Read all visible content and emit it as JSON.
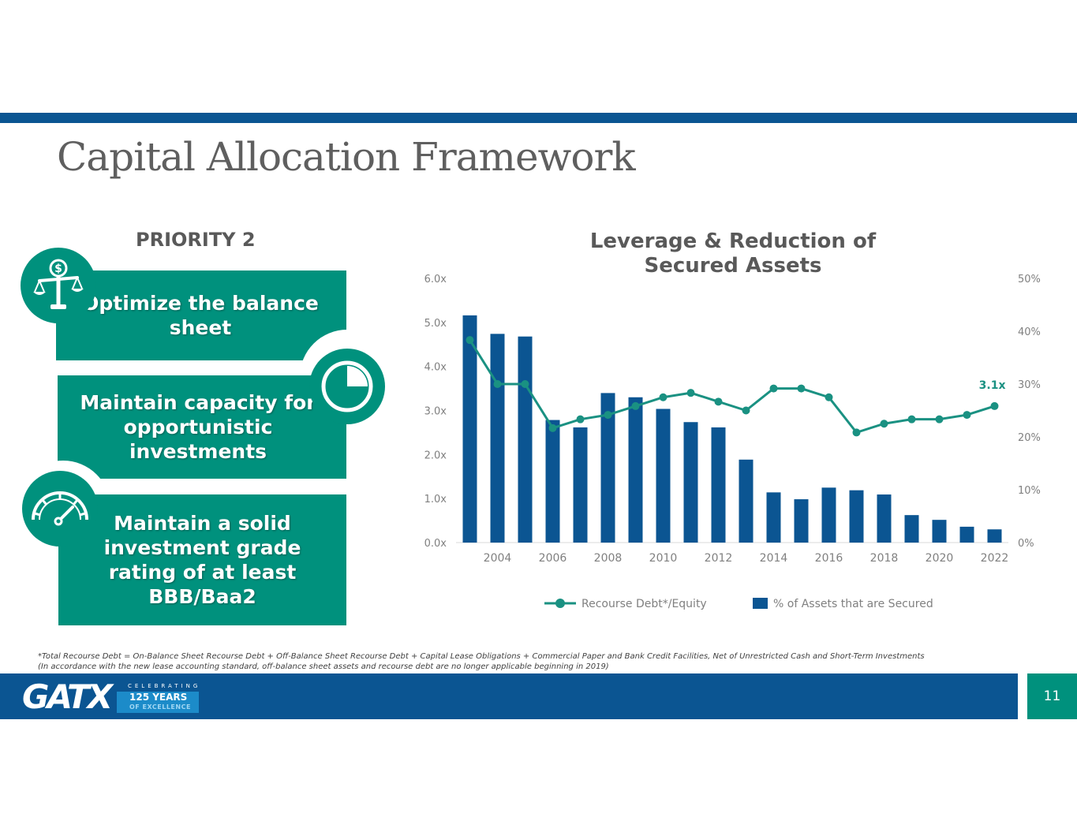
{
  "slide": {
    "title": "Capital Allocation Framework",
    "priority": "PRIORITY 2",
    "page_number": "11"
  },
  "panels": [
    {
      "text": "Optimize the balance sheet",
      "icon": "scale-dollar-icon"
    },
    {
      "text": "Maintain capacity for opportunistic investments",
      "icon": "clock-icon"
    },
    {
      "text": "Maintain a solid investment grade rating of at least BBB/Baa2",
      "icon": "speedometer-icon"
    }
  ],
  "footnotes": {
    "line1": "*Total Recourse Debt = On-Balance Sheet Recourse Debt + Off-Balance Sheet Recourse Debt + Capital Lease Obligations + Commercial Paper and Bank Credit Facilities, Net of Unrestricted Cash and Short-Term Investments",
    "line2": "(In accordance with the new lease accounting standard, off-balance sheet assets and recourse debt are no longer applicable beginning in 2019)"
  },
  "logo": {
    "brand": "GATX",
    "celebrating": "CELEBRATING",
    "years": "125 YEARS",
    "excellence": "OF EXCELLENCE"
  },
  "colors": {
    "teal": "#00917d",
    "navy": "#0b5592",
    "bar": "#0b5592",
    "line": "#1a9182"
  },
  "chart_data": {
    "type": "bar+line",
    "title": "Leverage & Reduction of Secured Assets",
    "years": [
      2003,
      2004,
      2005,
      2006,
      2007,
      2008,
      2009,
      2010,
      2011,
      2012,
      2013,
      2014,
      2015,
      2016,
      2017,
      2018,
      2019,
      2020,
      2021,
      2022
    ],
    "x_tick_labels": [
      "2004",
      "2006",
      "2008",
      "2010",
      "2012",
      "2014",
      "2016",
      "2018",
      "2020",
      "2022"
    ],
    "series": [
      {
        "name": "% of Assets that are Secured",
        "type": "bar",
        "axis": "right",
        "values": [
          43,
          39.5,
          39,
          23.2,
          21.8,
          28.3,
          27.5,
          25.3,
          22.8,
          21.8,
          15.7,
          9.5,
          8.2,
          10.4,
          9.9,
          9.1,
          5.2,
          4.3,
          3.0,
          2.5
        ]
      },
      {
        "name": "Recourse Debt*/Equity",
        "type": "line",
        "axis": "left",
        "values": [
          4.6,
          3.6,
          3.6,
          2.6,
          2.8,
          2.9,
          3.1,
          3.3,
          3.4,
          3.2,
          3.0,
          3.5,
          3.5,
          3.3,
          2.5,
          2.7,
          2.8,
          2.8,
          2.9,
          3.1
        ]
      }
    ],
    "left_axis": {
      "min": 0,
      "max": 6,
      "ticks": [
        "0.0x",
        "1.0x",
        "2.0x",
        "3.0x",
        "4.0x",
        "5.0x",
        "6.0x"
      ]
    },
    "right_axis": {
      "min": 0,
      "max": 50,
      "ticks": [
        "0%",
        "10%",
        "20%",
        "30%",
        "40%",
        "50%"
      ]
    },
    "annotation": "3.1x",
    "legend": [
      "Recourse Debt*/Equity",
      "% of Assets that are Secured"
    ],
    "legend_position": "bottom"
  }
}
